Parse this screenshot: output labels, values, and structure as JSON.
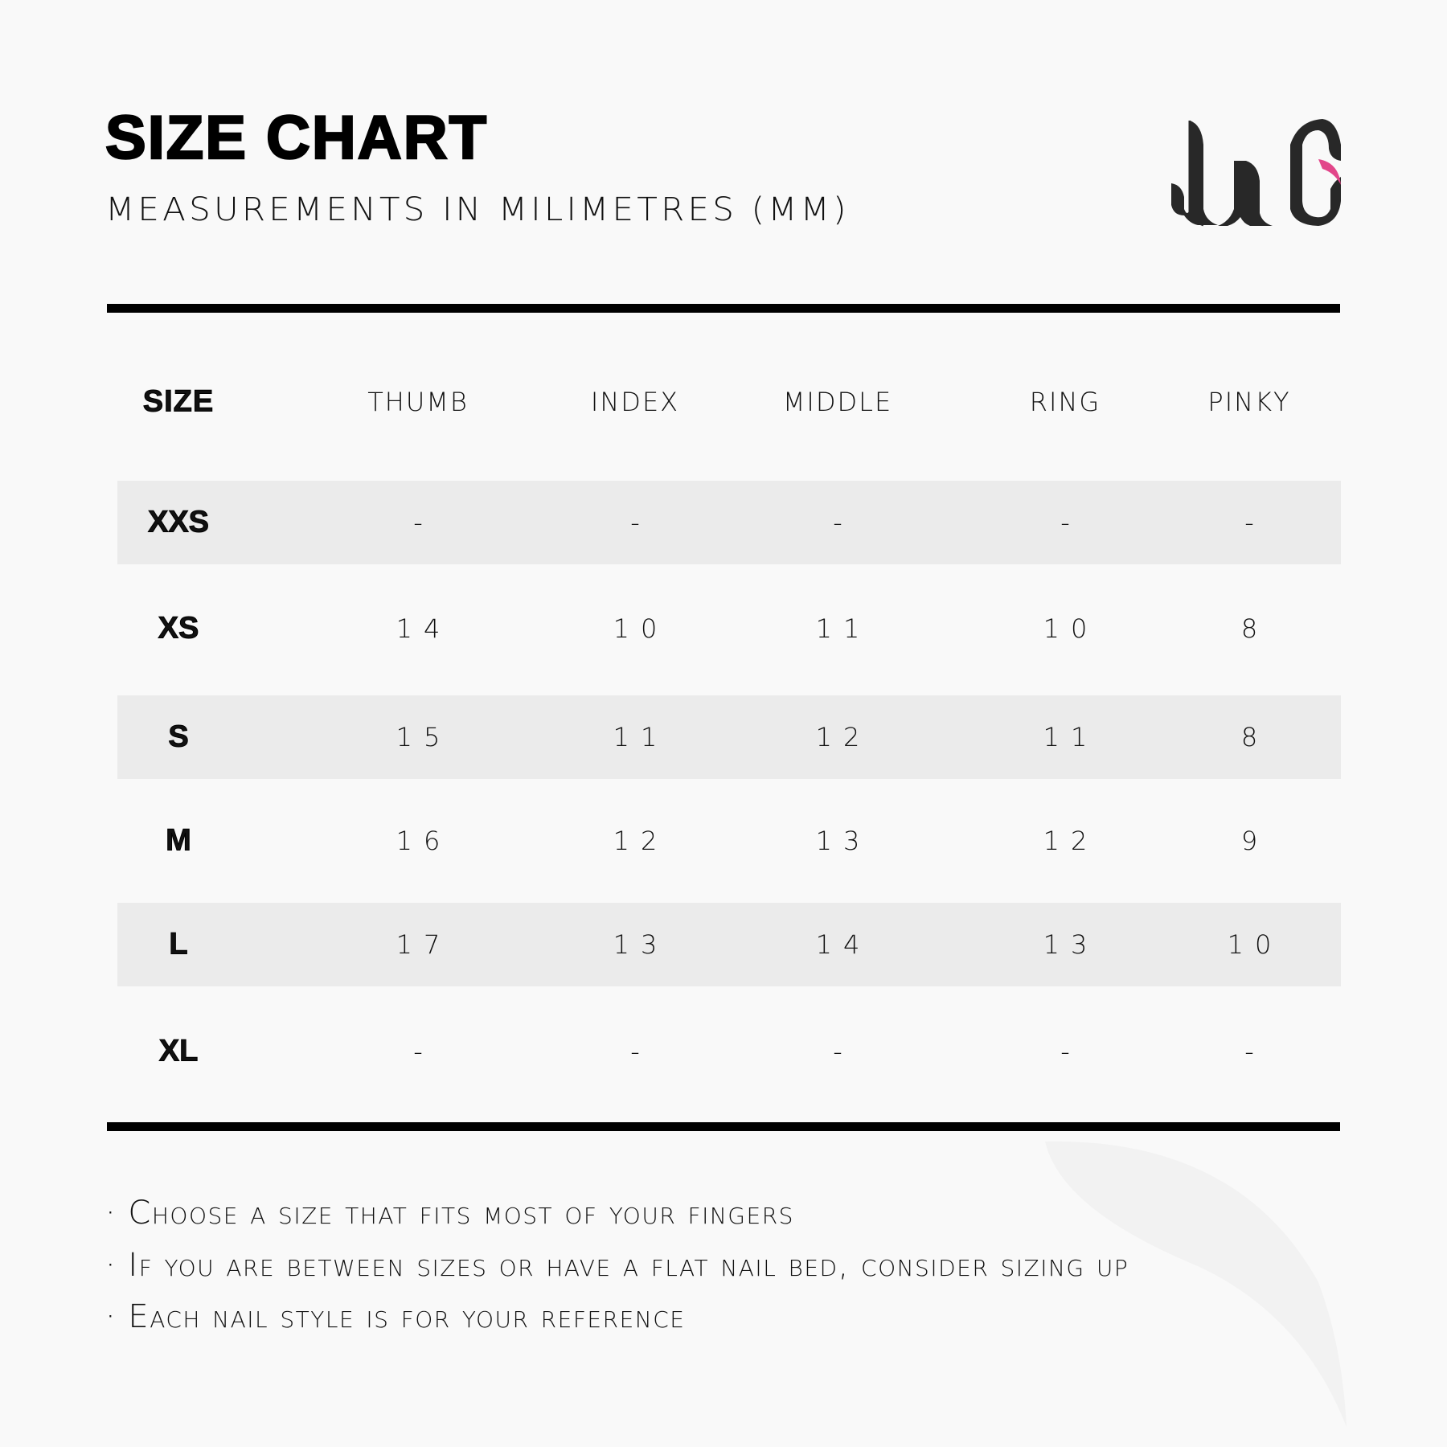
{
  "header": {
    "title": "SIZE CHART",
    "subtitle": "MEASUREMENTS IN MILIMETRES (MM)",
    "logo_text": "JiG",
    "accent_color": "#e2468a"
  },
  "table": {
    "columns": [
      "SIZE",
      "THUMB",
      "INDEX",
      "MIDDLE",
      "RING",
      "PINKY"
    ],
    "rows": [
      {
        "size": "XXS",
        "values": [
          "-",
          "-",
          "-",
          "-",
          "-"
        ]
      },
      {
        "size": "XS",
        "values": [
          "14",
          "10",
          "11",
          "10",
          "8"
        ]
      },
      {
        "size": "S",
        "values": [
          "15",
          "11",
          "12",
          "11",
          "8"
        ]
      },
      {
        "size": "M",
        "values": [
          "16",
          "12",
          "13",
          "12",
          "9"
        ]
      },
      {
        "size": "L",
        "values": [
          "17",
          "13",
          "14",
          "13",
          "10"
        ]
      },
      {
        "size": "XL",
        "values": [
          "-",
          "-",
          "-",
          "-",
          "-"
        ]
      }
    ]
  },
  "notes": [
    "· Choose a size that fits most of your fingers",
    "· If you are between sizes or have a flat nail bed, consider sizing up",
    "· Each nail style is for your reference"
  ]
}
